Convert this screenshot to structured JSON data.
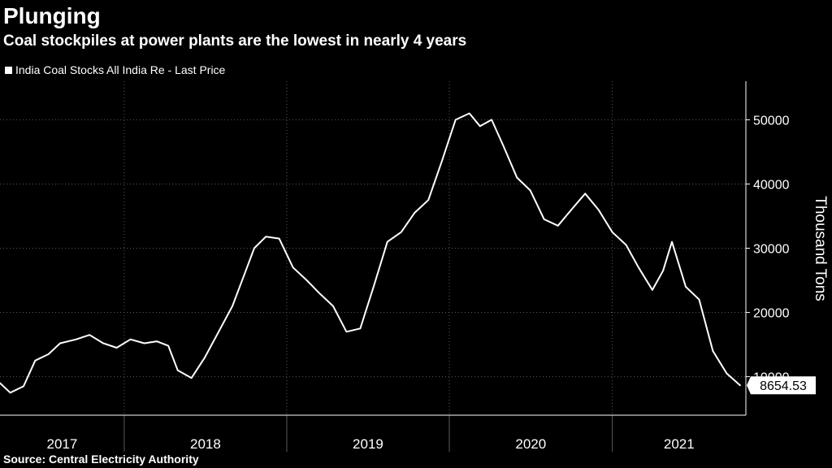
{
  "header": {
    "title": "Plunging",
    "subtitle": "Coal stockpiles at power plants are the lowest in nearly 4 years"
  },
  "footer": {
    "source": "Source: Central Electricity Authority"
  },
  "colors": {
    "background": "#000000",
    "line": "#ffffff",
    "grid": "#5a5a5a",
    "text": "#ffffff"
  },
  "chart_data": {
    "type": "line",
    "title": "Plunging",
    "subtitle": "Coal stockpiles at power plants are the lowest in nearly 4 years",
    "ylabel": "Thousand Tons",
    "xlabel": "",
    "ylim": [
      4000,
      56000
    ],
    "xlim": [
      "2017-03-28",
      "2021-10-28"
    ],
    "y_ticks": [
      10000,
      20000,
      30000,
      40000,
      50000
    ],
    "y_tick_labels": [
      "10000",
      "20000",
      "30000",
      "40000",
      "50000"
    ],
    "x_tick_labels": [
      "2017",
      "2018",
      "2019",
      "2020",
      "2021"
    ],
    "grid": true,
    "y_axis_side": "right",
    "legend": {
      "position": "top-left",
      "entries": [
        "India Coal Stocks All India Re - Last Price"
      ]
    },
    "last_value_label": "8654.53",
    "series": [
      {
        "name": "India Coal Stocks All India Re - Last Price",
        "color": "#ffffff",
        "x": [
          "2017-03-28",
          "2017-04-20",
          "2017-05-20",
          "2017-06-15",
          "2017-07-15",
          "2017-08-10",
          "2017-09-15",
          "2017-10-15",
          "2017-11-15",
          "2017-12-15",
          "2018-01-15",
          "2018-02-15",
          "2018-03-15",
          "2018-04-10",
          "2018-05-01",
          "2018-06-01",
          "2018-07-01",
          "2018-08-01",
          "2018-09-01",
          "2018-10-01",
          "2018-10-20",
          "2018-11-15",
          "2018-12-15",
          "2019-01-15",
          "2019-02-15",
          "2019-03-15",
          "2019-04-15",
          "2019-05-15",
          "2019-06-15",
          "2019-07-15",
          "2019-08-15",
          "2019-09-15",
          "2019-10-15",
          "2019-11-15",
          "2019-12-15",
          "2020-01-15",
          "2020-02-15",
          "2020-03-10",
          "2020-04-05",
          "2020-05-01",
          "2020-06-01",
          "2020-07-01",
          "2020-08-01",
          "2020-09-01",
          "2020-10-01",
          "2020-11-01",
          "2020-12-01",
          "2021-01-01",
          "2021-02-01",
          "2021-03-01",
          "2021-04-01",
          "2021-04-25",
          "2021-05-15",
          "2021-06-15",
          "2021-07-15",
          "2021-08-15",
          "2021-09-15",
          "2021-10-15"
        ],
        "values": [
          9000,
          7500,
          8500,
          12500,
          13500,
          15200,
          15800,
          16500,
          15200,
          14500,
          15800,
          15200,
          15500,
          14800,
          11000,
          9800,
          13000,
          17000,
          21000,
          26500,
          30000,
          31800,
          31500,
          27000,
          25000,
          23000,
          21000,
          17000,
          17500,
          24000,
          31000,
          32500,
          35500,
          37500,
          43500,
          50000,
          51000,
          49000,
          50000,
          46000,
          41000,
          39000,
          34500,
          33500,
          36000,
          38500,
          36000,
          32500,
          30500,
          27000,
          23500,
          26500,
          31000,
          24000,
          22000,
          14000,
          10500,
          8654.53
        ]
      }
    ]
  }
}
